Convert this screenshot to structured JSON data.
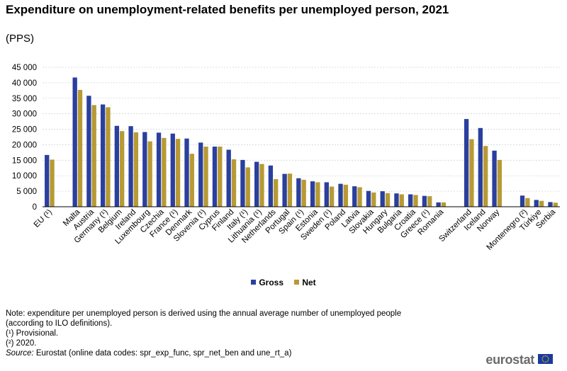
{
  "title": "Expenditure on unemployment-related benefits per unemployed person, 2021",
  "subtitle": "(PPS)",
  "legend": [
    {
      "name": "Gross",
      "color": "#2a3f9e"
    },
    {
      "name": "Net",
      "color": "#b79a35"
    }
  ],
  "notes": {
    "line1": "Note: expenditure per unemployed person is derived using the annual average number of unemployed people (according to ILO definitions).",
    "line2": "(¹) Provisional.",
    "line3": "(²) 2020.",
    "source_label": "Source:",
    "source_text": " Eurostat (online data codes: spr_exp_func, spr_net_ben and une_rt_a)"
  },
  "logo": {
    "text": "eurostat",
    "flag_icon": "eu-flag-icon"
  },
  "chart_data": {
    "type": "bar",
    "categories": [
      "EU (¹)",
      "Malta",
      "Austria",
      "Germany (¹)",
      "Belgium",
      "Ireland",
      "Luxembourg",
      "Czechia",
      "France (¹)",
      "Denmark",
      "Slovenia (¹)",
      "Cyprus",
      "Finland",
      "Italy (¹)",
      "Lithuania (¹)",
      "Netherlands",
      "Portugal",
      "Spain (¹)",
      "Estonia",
      "Sweden (¹)",
      "Poland",
      "Latvia",
      "Slovakia",
      "Hungary",
      "Bulgaria",
      "Croatia",
      "Greece (¹)",
      "Romania",
      "Switzerland",
      "Iceland",
      "Norway",
      "Montenegro (²)",
      "Türkiye",
      "Serbia"
    ],
    "groups": [
      [
        0
      ],
      [
        1,
        27
      ],
      [
        28,
        30
      ],
      [
        31,
        33
      ]
    ],
    "series": [
      {
        "name": "Gross",
        "values": [
          16700,
          41700,
          35800,
          33000,
          26100,
          26000,
          24100,
          23900,
          23600,
          22000,
          20700,
          19400,
          18400,
          15100,
          14500,
          13300,
          10600,
          9200,
          8200,
          7900,
          7400,
          6600,
          5100,
          5000,
          4300,
          4000,
          3500,
          1400,
          28300,
          25400,
          18100,
          3600,
          2200,
          1500
        ]
      },
      {
        "name": "Net",
        "values": [
          15200,
          37700,
          32800,
          32100,
          24400,
          24000,
          21100,
          22200,
          21900,
          17100,
          19400,
          19400,
          15300,
          12700,
          13800,
          8900,
          10700,
          8700,
          7900,
          6500,
          7100,
          6300,
          4600,
          4400,
          4000,
          3800,
          3400,
          1400,
          21800,
          19600,
          15100,
          2800,
          1900,
          1300
        ]
      }
    ],
    "y_ticks": [
      "0",
      "5 000",
      "10 000",
      "15 000",
      "20 000",
      "25 000",
      "30 000",
      "35 000",
      "40 000",
      "45 000"
    ],
    "ylim": [
      0,
      45000
    ],
    "grid": true,
    "legend_position": "bottom-center"
  }
}
